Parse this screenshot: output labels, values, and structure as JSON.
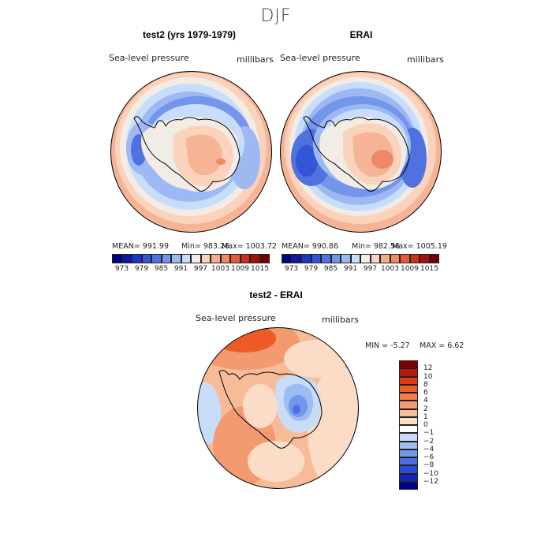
{
  "page": {
    "title": "DJF"
  },
  "chart_data": [
    {
      "type": "heatmap",
      "title": "test2 (yrs 1979-1979)",
      "variable": "Sea-level pressure",
      "units": "millibars",
      "projection": "south polar stereographic",
      "stats": {
        "mean": "991.99",
        "min": "983.26",
        "max": "1003.72"
      },
      "stats_text": {
        "mean": "MEAN= 991.99",
        "min": "Min= 983.26",
        "max": "Max= 1003.72"
      },
      "colorbar": {
        "levels": [
          973,
          976,
          979,
          982,
          985,
          988,
          991,
          994,
          997,
          1000,
          1003,
          1006,
          1009,
          1012,
          1015
        ],
        "tick_labels": [
          "973",
          "979",
          "985",
          "991",
          "997",
          "1003",
          "1009",
          "1015"
        ],
        "colors": [
          "#000080",
          "#0a16a8",
          "#1936c8",
          "#3355d8",
          "#4f72e0",
          "#7395ea",
          "#9db8f3",
          "#c8dcfb",
          "#f0ece6",
          "#fbd2bd",
          "#f6ad8f",
          "#ee8866",
          "#e25c3c",
          "#c9301c",
          "#a0120a",
          "#700000"
        ]
      }
    },
    {
      "type": "heatmap",
      "title": "ERAI",
      "variable": "Sea-level pressure",
      "units": "millibars",
      "projection": "south polar stereographic",
      "stats": {
        "mean": "990.86",
        "min": "982.56",
        "max": "1005.19"
      },
      "stats_text": {
        "mean": "MEAN= 990.86",
        "min": "Min= 982.56",
        "max": "Max= 1005.19"
      },
      "colorbar": {
        "levels": [
          973,
          976,
          979,
          982,
          985,
          988,
          991,
          994,
          997,
          1000,
          1003,
          1006,
          1009,
          1012,
          1015
        ],
        "tick_labels": [
          "973",
          "979",
          "985",
          "991",
          "997",
          "1003",
          "1009",
          "1015"
        ],
        "colors": [
          "#000080",
          "#0a16a8",
          "#1936c8",
          "#3355d8",
          "#4f72e0",
          "#7395ea",
          "#9db8f3",
          "#c8dcfb",
          "#f0ece6",
          "#fbd2bd",
          "#f6ad8f",
          "#ee8866",
          "#e25c3c",
          "#c9301c",
          "#a0120a",
          "#700000"
        ]
      }
    },
    {
      "type": "heatmap",
      "title": "test2 - ERAI",
      "variable": "Sea-level pressure",
      "units": "millibars",
      "projection": "south polar stereographic",
      "stats": {
        "min": "-5.27",
        "max": "6.62"
      },
      "stats_text": {
        "min": "MIN = -5.27",
        "max": "MAX = 6.62"
      },
      "colorbar": {
        "levels": [
          -12,
          -10,
          -8,
          -6,
          -4,
          -2,
          -1,
          0,
          1,
          2,
          4,
          6,
          8,
          10,
          12
        ],
        "tick_labels": [
          "12",
          "10",
          "8",
          "6",
          "4",
          "2",
          "1",
          "0",
          "−1",
          "−2",
          "−4",
          "−6",
          "−8",
          "−10",
          "−12"
        ],
        "colors": [
          "#800000",
          "#b5170c",
          "#de3a14",
          "#f05a26",
          "#f47d4a",
          "#f49a70",
          "#f7bb99",
          "#fbdcc6",
          "#ffffff",
          "#c9dcf7",
          "#9dbcf2",
          "#7597ea",
          "#4e6fe2",
          "#2b48d8",
          "#1024bf",
          "#000090"
        ]
      }
    }
  ]
}
